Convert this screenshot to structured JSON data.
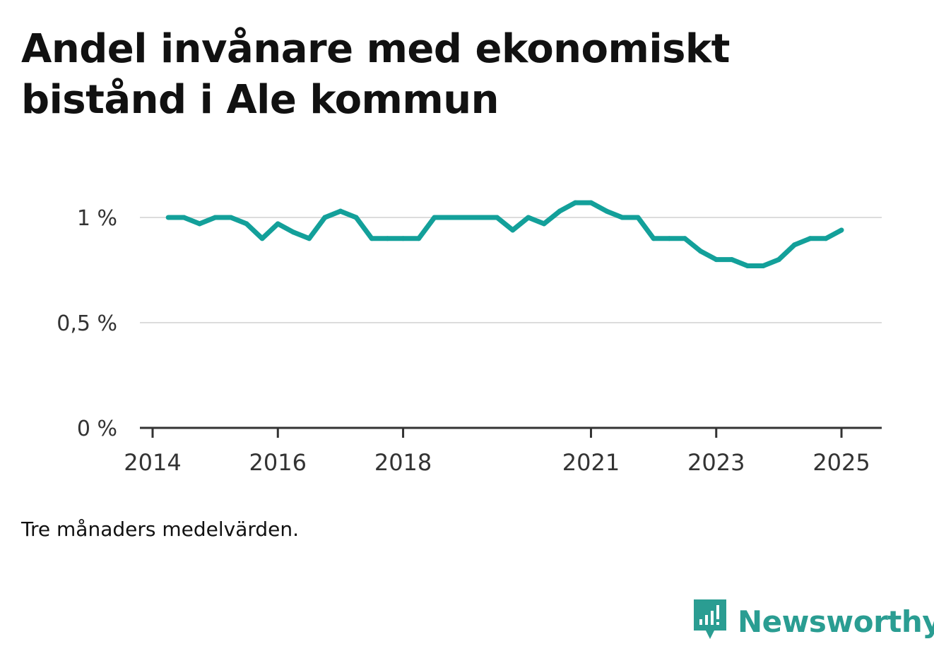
{
  "title": "Andel invånare med ekonomiskt bistånd i Ale kommun",
  "note": "Tre månaders medelvärden.",
  "brand": {
    "name": "Newsworthy",
    "icon": "newsworthy-logo-icon",
    "color": "#2a9d92"
  },
  "chart_data": {
    "type": "line",
    "title": "Andel invånare med ekonomiskt bistånd i Ale kommun",
    "xlabel": "",
    "ylabel": "",
    "ylim": [
      0,
      1.0
    ],
    "xlim": [
      2014.0,
      2025.3
    ],
    "y_ticks": [
      {
        "value": 0,
        "label": "0 %"
      },
      {
        "value": 0.5,
        "label": "0,5 %"
      },
      {
        "value": 1.0,
        "label": "1 %"
      }
    ],
    "x_ticks": [
      {
        "value": 2014,
        "label": "2014"
      },
      {
        "value": 2016,
        "label": "2016"
      },
      {
        "value": 2018,
        "label": "2018"
      },
      {
        "value": 2021,
        "label": "2021"
      },
      {
        "value": 2023,
        "label": "2023"
      },
      {
        "value": 2025,
        "label": "2025"
      }
    ],
    "grid": true,
    "line_color": "#13a09a",
    "series": [
      {
        "x": [
          2014.25,
          2014.5,
          2014.75,
          2015.0,
          2015.25,
          2015.5,
          2015.75,
          2016.0,
          2016.25,
          2016.5,
          2016.75,
          2017.0,
          2017.25,
          2017.5,
          2017.75,
          2018.0,
          2018.25,
          2018.5,
          2018.75,
          2019.0,
          2019.25,
          2019.5,
          2019.75,
          2020.0,
          2020.25,
          2020.5,
          2020.75,
          2021.0,
          2021.25,
          2021.5,
          2021.75,
          2022.0,
          2022.25,
          2022.5,
          2022.75,
          2023.0,
          2023.25,
          2023.5,
          2023.75,
          2024.0,
          2024.25,
          2024.5,
          2024.75,
          2025.0
        ],
        "values": [
          1.0,
          1.0,
          0.97,
          1.0,
          1.0,
          0.97,
          0.9,
          0.97,
          0.93,
          0.9,
          1.0,
          1.03,
          1.0,
          0.9,
          0.9,
          0.9,
          0.9,
          1.0,
          1.0,
          1.0,
          1.0,
          1.0,
          0.94,
          1.0,
          0.97,
          1.03,
          1.07,
          1.07,
          1.03,
          1.0,
          1.0,
          0.9,
          0.9,
          0.9,
          0.84,
          0.8,
          0.8,
          0.77,
          0.77,
          0.8,
          0.87,
          0.9,
          0.9,
          0.94
        ]
      }
    ]
  }
}
